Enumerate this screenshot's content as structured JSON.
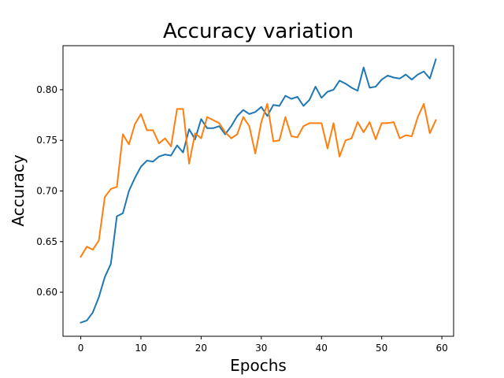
{
  "chart_data": {
    "type": "line",
    "title": "Accuracy variation",
    "xlabel": "Epochs",
    "ylabel": "Accuracy",
    "xlim": [
      -2.95,
      61.95
    ],
    "ylim": [
      0.5565,
      0.8435
    ],
    "xticks": [
      0,
      10,
      20,
      30,
      40,
      50,
      60
    ],
    "yticks": [
      0.6,
      0.65,
      0.7,
      0.75,
      0.8
    ],
    "ytick_labels": [
      "0.60",
      "0.65",
      "0.70",
      "0.75",
      "0.80"
    ],
    "grid": false,
    "legend": null,
    "x": [
      0,
      1,
      2,
      3,
      4,
      5,
      6,
      7,
      8,
      9,
      10,
      11,
      12,
      13,
      14,
      15,
      16,
      17,
      18,
      19,
      20,
      21,
      22,
      23,
      24,
      25,
      26,
      27,
      28,
      29,
      30,
      31,
      32,
      33,
      34,
      35,
      36,
      37,
      38,
      39,
      40,
      41,
      42,
      43,
      44,
      45,
      46,
      47,
      48,
      49,
      50,
      51,
      52,
      53,
      54,
      55,
      56,
      57,
      58,
      59
    ],
    "series": [
      {
        "color": "#1f77b4",
        "values": [
          0.57,
          0.572,
          0.58,
          0.595,
          0.615,
          0.628,
          0.675,
          0.678,
          0.7,
          0.713,
          0.724,
          0.73,
          0.729,
          0.734,
          0.736,
          0.735,
          0.745,
          0.738,
          0.761,
          0.751,
          0.771,
          0.762,
          0.762,
          0.764,
          0.756,
          0.764,
          0.774,
          0.78,
          0.776,
          0.778,
          0.783,
          0.774,
          0.785,
          0.784,
          0.794,
          0.791,
          0.793,
          0.784,
          0.79,
          0.803,
          0.792,
          0.798,
          0.8,
          0.809,
          0.806,
          0.802,
          0.799,
          0.822,
          0.802,
          0.803,
          0.81,
          0.814,
          0.812,
          0.811,
          0.815,
          0.81,
          0.815,
          0.818,
          0.811,
          0.83
        ]
      },
      {
        "color": "#ff7f0e",
        "values": [
          0.635,
          0.645,
          0.642,
          0.651,
          0.694,
          0.702,
          0.704,
          0.756,
          0.746,
          0.766,
          0.776,
          0.76,
          0.76,
          0.747,
          0.752,
          0.744,
          0.781,
          0.781,
          0.727,
          0.757,
          0.752,
          0.773,
          0.77,
          0.767,
          0.758,
          0.752,
          0.756,
          0.773,
          0.764,
          0.737,
          0.768,
          0.786,
          0.749,
          0.75,
          0.773,
          0.754,
          0.753,
          0.764,
          0.767,
          0.767,
          0.767,
          0.742,
          0.767,
          0.734,
          0.75,
          0.752,
          0.768,
          0.758,
          0.768,
          0.751,
          0.767,
          0.767,
          0.768,
          0.752,
          0.755,
          0.754,
          0.773,
          0.786,
          0.757,
          0.77
        ]
      }
    ]
  }
}
